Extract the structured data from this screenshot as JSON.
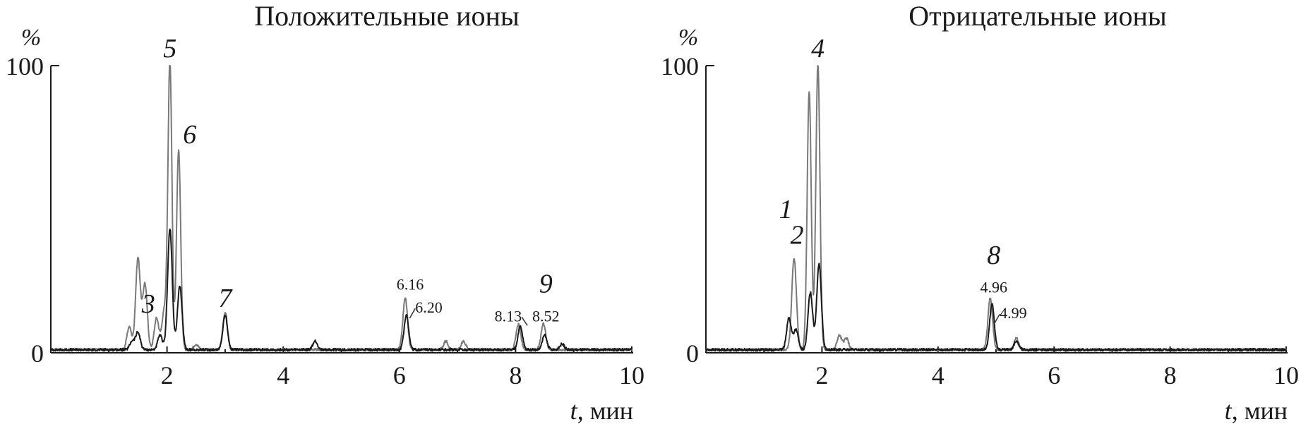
{
  "chart_data": [
    {
      "type": "line",
      "title": "Положительные ионы",
      "ylabel": "%",
      "xlabel_var": "t",
      "xlabel_unit": ", мин",
      "xlim": [
        0,
        10
      ],
      "ylim": [
        0,
        100
      ],
      "x_ticks": [
        "2",
        "4",
        "6",
        "8",
        "10"
      ],
      "y_ticks": [
        "100",
        "0"
      ],
      "series": [
        {
          "color": "#7a7a7a",
          "peaks": [
            {
              "x": 1.35,
              "y": 8
            },
            {
              "x": 1.5,
              "y": 32
            },
            {
              "x": 1.62,
              "y": 23
            },
            {
              "x": 1.82,
              "y": 11
            },
            {
              "x": 1.95,
              "y": 13
            },
            {
              "x": 2.05,
              "y": 100
            },
            {
              "x": 2.2,
              "y": 70
            },
            {
              "x": 2.5,
              "y": 2
            },
            {
              "x": 3.0,
              "y": 13
            },
            {
              "x": 6.1,
              "y": 18
            },
            {
              "x": 6.8,
              "y": 3
            },
            {
              "x": 7.1,
              "y": 3
            },
            {
              "x": 8.05,
              "y": 9
            },
            {
              "x": 8.48,
              "y": 9
            }
          ]
        },
        {
          "color": "#1a1a1a",
          "peaks": [
            {
              "x": 1.4,
              "y": 3
            },
            {
              "x": 1.5,
              "y": 6
            },
            {
              "x": 1.88,
              "y": 5
            },
            {
              "x": 2.05,
              "y": 42
            },
            {
              "x": 2.22,
              "y": 22
            },
            {
              "x": 3.0,
              "y": 12
            },
            {
              "x": 4.55,
              "y": 3
            },
            {
              "x": 6.12,
              "y": 12
            },
            {
              "x": 8.08,
              "y": 8
            },
            {
              "x": 8.5,
              "y": 5
            },
            {
              "x": 8.8,
              "y": 2
            }
          ]
        }
      ],
      "annotations": [
        {
          "text": "5",
          "x": 2.05,
          "y": 100,
          "style": "peak"
        },
        {
          "text": "6",
          "x": 2.22,
          "y": 70,
          "style": "peak"
        },
        {
          "text": "3",
          "x": 1.85,
          "y": 11,
          "style": "peak"
        },
        {
          "text": "7",
          "x": 3.0,
          "y": 13,
          "style": "peak"
        },
        {
          "text": "6.16",
          "x": 6.16,
          "y": 21,
          "style": "rt"
        },
        {
          "text": "6.20",
          "x": 6.2,
          "y": 13,
          "style": "rt"
        },
        {
          "text": "8.13",
          "x": 8.13,
          "y": 10,
          "style": "rt"
        },
        {
          "text": "9",
          "x": 8.52,
          "y": 18,
          "style": "peak"
        },
        {
          "text": "8.52",
          "x": 8.52,
          "y": 10,
          "style": "rt"
        }
      ]
    },
    {
      "type": "line",
      "title": "Отрицательные ионы",
      "ylabel": "%",
      "xlabel_var": "t",
      "xlabel_unit": ", мин",
      "xlim": [
        0,
        10
      ],
      "ylim": [
        0,
        100
      ],
      "x_ticks": [
        "2",
        "4",
        "6",
        "8",
        "10"
      ],
      "y_ticks": [
        "100",
        "0"
      ],
      "series": [
        {
          "color": "#7a7a7a",
          "peaks": [
            {
              "x": 1.52,
              "y": 32
            },
            {
              "x": 1.78,
              "y": 90
            },
            {
              "x": 1.93,
              "y": 100
            },
            {
              "x": 2.3,
              "y": 5
            },
            {
              "x": 2.42,
              "y": 4
            },
            {
              "x": 4.9,
              "y": 18
            },
            {
              "x": 5.35,
              "y": 4
            }
          ]
        },
        {
          "color": "#1a1a1a",
          "peaks": [
            {
              "x": 1.43,
              "y": 11
            },
            {
              "x": 1.55,
              "y": 7
            },
            {
              "x": 1.8,
              "y": 20
            },
            {
              "x": 1.95,
              "y": 30
            },
            {
              "x": 4.93,
              "y": 16
            },
            {
              "x": 5.35,
              "y": 3
            }
          ]
        }
      ],
      "annotations": [
        {
          "text": "4",
          "x": 1.93,
          "y": 100,
          "style": "peak"
        },
        {
          "text": "1",
          "x": 1.4,
          "y": 44,
          "style": "peak"
        },
        {
          "text": "2",
          "x": 1.52,
          "y": 35,
          "style": "peak"
        },
        {
          "text": "8",
          "x": 4.96,
          "y": 28,
          "style": "peak"
        },
        {
          "text": "4.96",
          "x": 4.96,
          "y": 20,
          "style": "rt"
        },
        {
          "text": "4.99",
          "x": 4.99,
          "y": 11,
          "style": "rt"
        }
      ]
    }
  ]
}
